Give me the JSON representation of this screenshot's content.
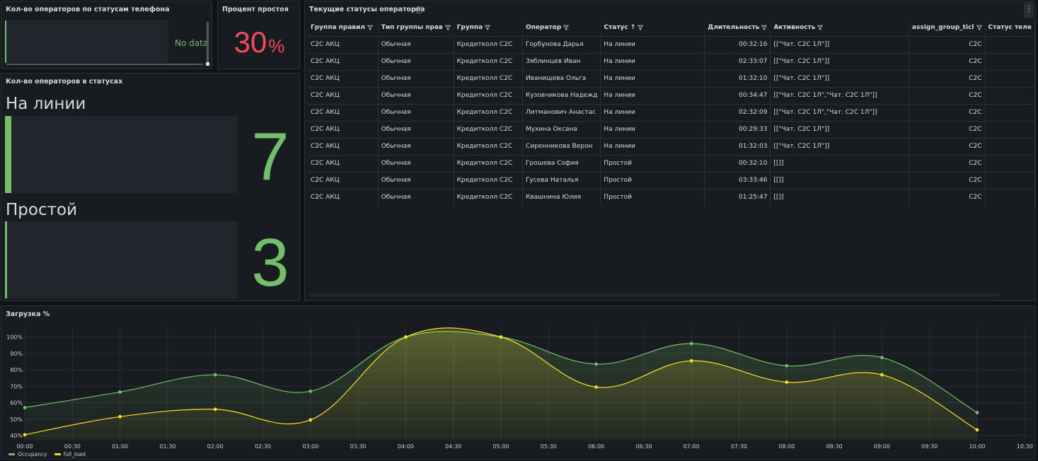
{
  "panels": {
    "phone_status": {
      "title": "Кол-во операторов по статусам телефона",
      "no_data": "No data"
    },
    "idle_percent": {
      "title": "Процент простоя",
      "value": "30",
      "unit": "%",
      "color": "#f2495c"
    },
    "operators_in_status": {
      "title": "Кол-во операторов в статусах",
      "stats": [
        {
          "label": "На линии",
          "value": "7"
        },
        {
          "label": "Простой",
          "value": "3"
        }
      ],
      "color": "#73bf69"
    },
    "current_statuses": {
      "title": "Текущие статусы операторов",
      "columns": [
        "Группа правил",
        "Тип группы прав",
        "Группа",
        "Оператор",
        "Статус",
        "Длительность",
        "Активность",
        "assign_group_ticl",
        "Статус теле"
      ],
      "rows": [
        [
          "C2C АКЦ",
          "Обычная",
          "Кредитколл C2C",
          "Горбунова Дарья",
          "На линии",
          "00:32:16",
          "[[\"Чат. C2C 1Л\"]]",
          "C2C",
          ""
        ],
        [
          "C2C АКЦ",
          "Обычная",
          "Кредитколл C2C",
          "Зяблинцев Иван",
          "На линии",
          "02:33:07",
          "[[\"Чат. C2C 1Л\"]]",
          "C2C",
          ""
        ],
        [
          "C2C АКЦ",
          "Обычная",
          "Кредитколл C2C",
          "Иванищева Ольга",
          "На линии",
          "01:32:10",
          "[[\"Чат. C2C 1Л\"]]",
          "C2C",
          ""
        ],
        [
          "C2C АКЦ",
          "Обычная",
          "Кредитколл C2C",
          "Кузовчикова Надежд",
          "На линии",
          "00:34:47",
          "[[\"Чат. C2C 1Л\",\"Чат. C2C 1Л\"]]",
          "C2C",
          ""
        ],
        [
          "C2C АКЦ",
          "Обычная",
          "Кредитколл C2C",
          "Литманович Анастас",
          "На линии",
          "02:32:09",
          "[[\"Чат. C2C 1Л\",\"Чат. C2C 1Л\"]]",
          "C2C",
          ""
        ],
        [
          "C2C АКЦ",
          "Обычная",
          "Кредитколл C2C",
          "Мухина Оксана",
          "На линии",
          "00:29:33",
          "[[\"Чат. C2C 1Л\"]]",
          "C2C",
          ""
        ],
        [
          "C2C АКЦ",
          "Обычная",
          "Кредитколл C2C",
          "Сиренникова Верон",
          "На линии",
          "01:32:03",
          "[[\"Чат. C2C 1Л\"]]",
          "C2C",
          ""
        ],
        [
          "C2C АКЦ",
          "Обычная",
          "Кредитколл C2C",
          "Грошева София",
          "Простой",
          "00:32:10",
          "[[]]",
          "C2C",
          ""
        ],
        [
          "C2C АКЦ",
          "Обычная",
          "Кредитколл C2C",
          "Гусева Наталья",
          "Простой",
          "03:33:46",
          "[[]]",
          "C2C",
          ""
        ],
        [
          "C2C АКЦ",
          "Обычная",
          "Кредитколл C2C",
          "Квашнина Юлия",
          "Простой",
          "01:25:47",
          "[[]]",
          "C2C",
          ""
        ]
      ]
    },
    "load": {
      "title": "Загрузка %"
    }
  },
  "chart_data": {
    "type": "line",
    "title": "Загрузка %",
    "x_ticks": [
      "00:00",
      "00:30",
      "01:00",
      "01:30",
      "02:00",
      "02:30",
      "03:00",
      "03:30",
      "04:00",
      "04:30",
      "05:00",
      "05:30",
      "06:00",
      "06:30",
      "07:00",
      "07:30",
      "08:00",
      "08:30",
      "09:00",
      "09:30",
      "10:00",
      "10:30"
    ],
    "x": [
      "00:00",
      "01:00",
      "02:00",
      "03:00",
      "04:00",
      "05:00",
      "06:00",
      "07:00",
      "08:00",
      "09:00",
      "10:00"
    ],
    "y_ticks": [
      "40%",
      "50%",
      "60%",
      "70%",
      "80%",
      "90%",
      "100%"
    ],
    "ylim": [
      37,
      105
    ],
    "series": [
      {
        "name": "Occupancy",
        "color": "#73bf69",
        "values": [
          57,
          66.5,
          77,
          67,
          100,
          100,
          83.5,
          96,
          82.5,
          87.5,
          54
        ]
      },
      {
        "name": "full_load",
        "color": "#fade2a",
        "values": [
          40.5,
          51.5,
          56,
          49.5,
          100,
          100,
          69.5,
          85.5,
          72.5,
          77,
          43.5
        ]
      }
    ],
    "legend_placement": "bottom-left",
    "grid": true
  }
}
